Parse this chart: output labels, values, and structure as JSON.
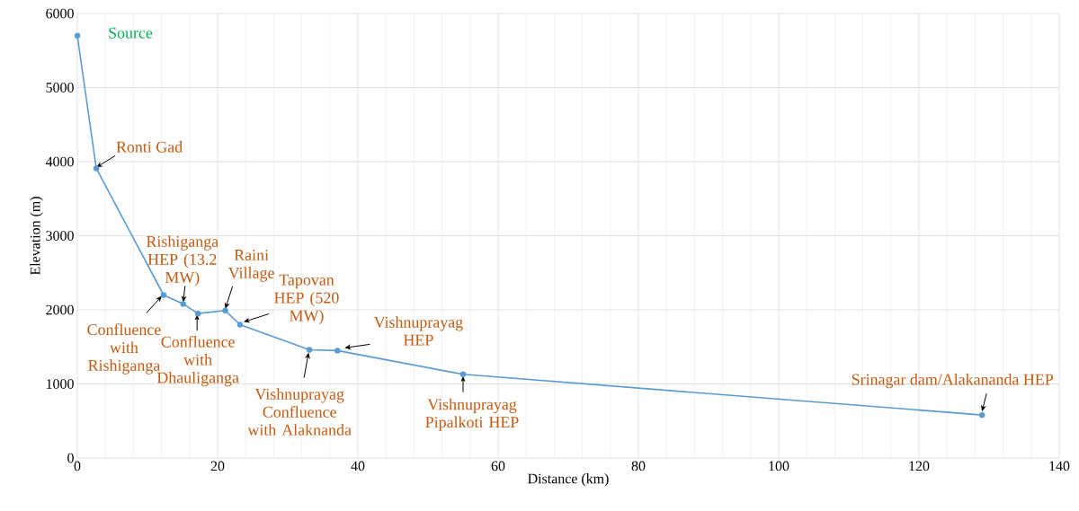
{
  "chart_data": {
    "type": "line",
    "xlabel": "Distance (km)",
    "ylabel": "Elevation (m)",
    "x": [
      0,
      2.7,
      12.3,
      15.1,
      17.2,
      21.1,
      23.2,
      33.1,
      37.1,
      55,
      129
    ],
    "series": [
      {
        "color": "#5b9bd5",
        "values": [
          5700,
          3910,
          2200,
          2080,
          1950,
          1990,
          1800,
          1460,
          1450,
          1130,
          580
        ]
      }
    ],
    "xlim": [
      0,
      140
    ],
    "xticks": [
      0,
      20,
      40,
      60,
      80,
      100,
      120,
      140
    ],
    "ylim": [
      0,
      6000
    ],
    "yticks": [
      0,
      1000,
      2000,
      3000,
      4000,
      5000,
      6000
    ],
    "grid": true,
    "marker": "circle",
    "line_style": "solid",
    "annotations": [
      {
        "text": "Source",
        "x": 0,
        "y": 5700
      },
      {
        "text": "Ronti Gad",
        "x": 2.7,
        "y": 3910
      },
      {
        "text": "Confluence with Rishiganga",
        "x": 12.3,
        "y": 2200
      },
      {
        "text": "Rishiganga HEP (13.2 MW)",
        "x": 15.1,
        "y": 2080
      },
      {
        "text": "Confluence with Dhauliganga",
        "x": 17.2,
        "y": 1950
      },
      {
        "text": "Raini Village",
        "x": 21.1,
        "y": 1990
      },
      {
        "text": "Tapovan HEP (520 MW)",
        "x": 23.2,
        "y": 1800
      },
      {
        "text": "Vishnuprayag Confluence with Alaknanda",
        "x": 33.1,
        "y": 1460
      },
      {
        "text": "Vishnuprayag HEP",
        "x": 37.1,
        "y": 1450
      },
      {
        "text": "Vishnuprayag Pipalkoti HEP",
        "x": 55,
        "y": 1130
      },
      {
        "text": "Srinagar dam/Alakananda HEP",
        "x": 129,
        "y": 580
      }
    ]
  }
}
